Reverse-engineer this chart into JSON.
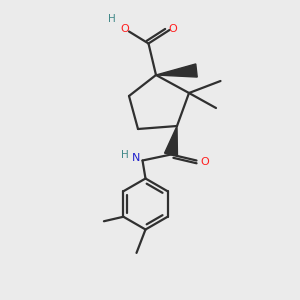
{
  "bg_color": "#ebebeb",
  "atom_colors": {
    "C": "#404040",
    "O": "#ff2020",
    "N": "#2020cc",
    "H": "#408888"
  },
  "bond_color": "#303030",
  "bond_lw": 1.6,
  "fig_size": [
    3.0,
    3.0
  ],
  "dpi": 100,
  "xlim": [
    0,
    10
  ],
  "ylim": [
    0,
    10
  ]
}
